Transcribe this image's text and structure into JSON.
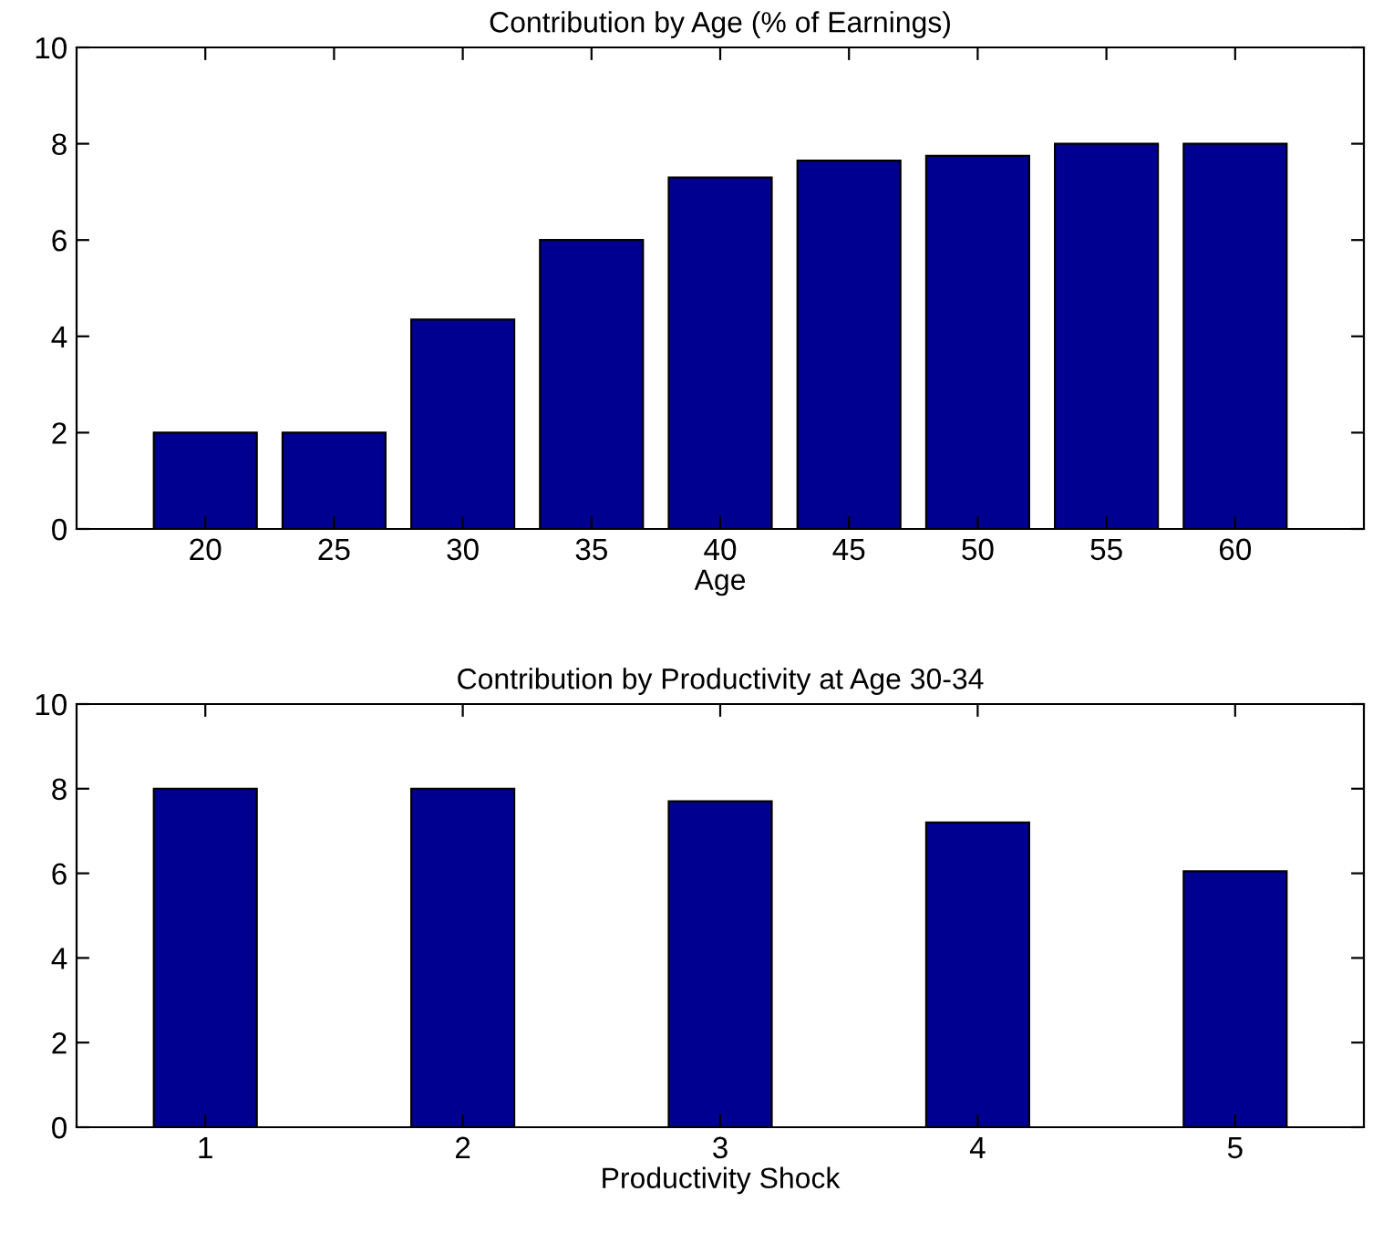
{
  "chart_data": [
    {
      "type": "bar",
      "title": "Contribution by Age (% of Earnings)",
      "xlabel": "Age",
      "x": [
        20,
        25,
        30,
        35,
        40,
        45,
        50,
        55,
        60
      ],
      "values": [
        2,
        2,
        4.35,
        6,
        7.3,
        7.65,
        7.75,
        8,
        8
      ],
      "color": "#000090",
      "xlim": [
        15,
        65
      ],
      "xticks": [
        20,
        25,
        30,
        35,
        40,
        45,
        50,
        55,
        60
      ],
      "ylim": [
        0,
        10
      ],
      "yticks": [
        0,
        2,
        4,
        6,
        8,
        10
      ],
      "grid": false,
      "legend": false
    },
    {
      "type": "bar",
      "title": "Contribution by Productivity at Age 30-34",
      "xlabel": "Productivity Shock",
      "x": [
        1,
        2,
        3,
        4,
        5
      ],
      "values": [
        8,
        8,
        7.7,
        7.2,
        6.05
      ],
      "color": "#000090",
      "xlim": [
        0.5,
        5.5
      ],
      "xticks": [
        1,
        2,
        3,
        4,
        5
      ],
      "ylim": [
        0,
        10
      ],
      "yticks": [
        0,
        2,
        4,
        6,
        8,
        10
      ],
      "grid": false,
      "legend": false
    }
  ]
}
